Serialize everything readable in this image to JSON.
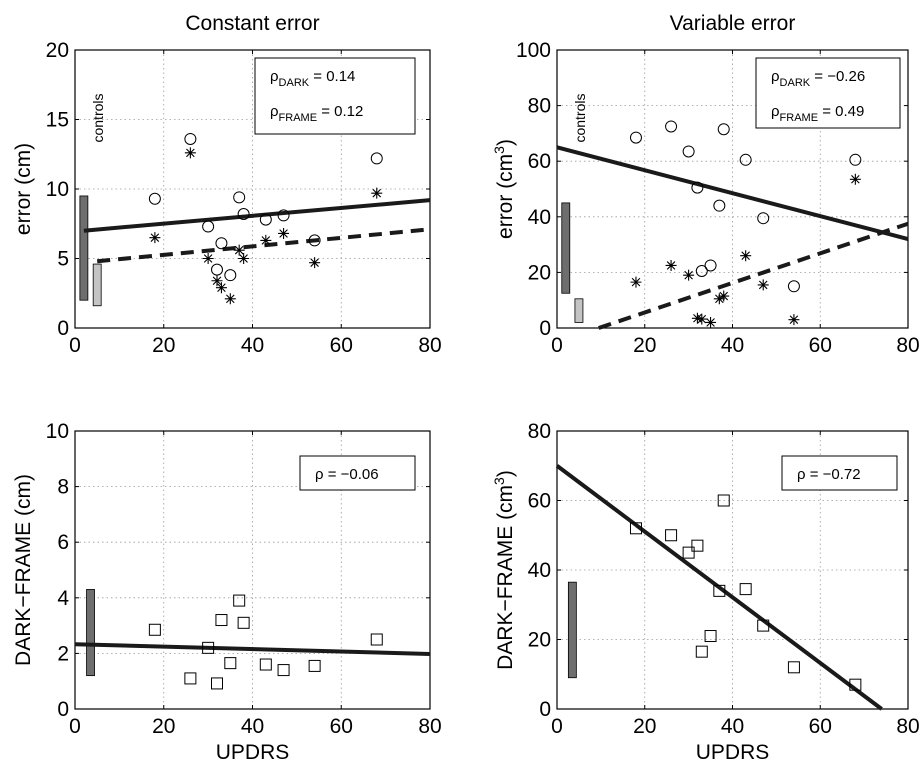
{
  "chart_data": [
    {
      "type": "scatter",
      "title": "Constant error",
      "xlabel": "",
      "ylabel": "error (cm)",
      "ylabel_sup": "",
      "xlim": [
        0,
        80
      ],
      "ylim": [
        0,
        20
      ],
      "xticks": [
        0,
        20,
        40,
        60,
        80
      ],
      "yticks": [
        0,
        5,
        10,
        15,
        20
      ],
      "grid": true,
      "annotation_text": "controls",
      "control_bars": [
        {
          "name": "controls DARK",
          "x": 2,
          "range": [
            2.0,
            9.5
          ],
          "color": "#6e6e6e"
        },
        {
          "name": "controls FRAME",
          "x": 5,
          "range": [
            1.6,
            4.6
          ],
          "color": "#c4c4c4"
        }
      ],
      "legend": [
        {
          "symbol": "ρ",
          "sub": "DARK",
          "value": "= 0.14"
        },
        {
          "symbol": "ρ",
          "sub": "FRAME",
          "value": "= 0.12"
        }
      ],
      "series": [
        {
          "marker": "circle",
          "x": [
            18,
            26,
            30,
            32,
            33,
            35,
            37,
            38,
            43,
            47,
            54,
            68
          ],
          "y": [
            9.3,
            13.6,
            7.3,
            4.2,
            6.1,
            3.8,
            9.4,
            8.2,
            7.8,
            8.1,
            6.3,
            12.2
          ]
        },
        {
          "marker": "star",
          "x": [
            18,
            26,
            30,
            32,
            33,
            35,
            37,
            38,
            43,
            47,
            54,
            68
          ],
          "y": [
            6.5,
            12.6,
            5.0,
            3.4,
            2.9,
            2.1,
            5.6,
            5.0,
            6.3,
            6.8,
            4.7,
            9.7
          ]
        }
      ],
      "fit_lines": [
        {
          "style": "solid",
          "x": [
            2,
            80
          ],
          "y": [
            7.0,
            9.2
          ]
        },
        {
          "style": "dashed",
          "x": [
            5,
            80
          ],
          "y": [
            4.8,
            7.1
          ]
        }
      ]
    },
    {
      "type": "scatter",
      "title": "Variable error",
      "xlabel": "",
      "ylabel": "error (cm",
      "ylabel_sup": "3",
      "ylabel_end": ")",
      "xlim": [
        0,
        80
      ],
      "ylim": [
        0,
        100
      ],
      "xticks": [
        0,
        20,
        40,
        60,
        80
      ],
      "yticks": [
        0,
        20,
        40,
        60,
        80,
        100
      ],
      "grid": true,
      "annotation_text": "controls",
      "control_bars": [
        {
          "name": "controls DARK",
          "x": 2,
          "range": [
            12.5,
            45.0
          ],
          "color": "#6e6e6e"
        },
        {
          "name": "controls FRAME",
          "x": 5,
          "range": [
            2.0,
            10.5
          ],
          "color": "#c4c4c4"
        }
      ],
      "legend": [
        {
          "symbol": "ρ",
          "sub": "DARK",
          "value": "= −0.26"
        },
        {
          "symbol": "ρ",
          "sub": "FRAME",
          "value": "= 0.49"
        }
      ],
      "series": [
        {
          "marker": "circle",
          "x": [
            18,
            26,
            30,
            32,
            33,
            35,
            37,
            38,
            43,
            47,
            54,
            68
          ],
          "y": [
            68.5,
            72.5,
            63.5,
            50.5,
            20.5,
            22.5,
            44.0,
            71.5,
            60.5,
            39.5,
            15.0,
            60.5
          ]
        },
        {
          "marker": "star",
          "x": [
            18,
            26,
            30,
            32,
            33,
            35,
            37,
            38,
            43,
            47,
            54,
            68
          ],
          "y": [
            16.5,
            22.5,
            19.0,
            3.5,
            3.2,
            2.0,
            10.5,
            11.5,
            26.0,
            15.5,
            3.0,
            53.5
          ]
        }
      ],
      "fit_lines": [
        {
          "style": "solid",
          "x": [
            0,
            80
          ],
          "y": [
            65,
            32
          ]
        },
        {
          "style": "dashed",
          "x": [
            9.5,
            80
          ],
          "y": [
            0,
            37.5
          ]
        }
      ]
    },
    {
      "type": "scatter",
      "title": "",
      "xlabel": "UPDRS",
      "ylabel": "DARK−FRAME (cm)",
      "ylabel_sup": "",
      "xlim": [
        0,
        80
      ],
      "ylim": [
        0,
        10
      ],
      "xticks": [
        0,
        20,
        40,
        60,
        80
      ],
      "yticks": [
        0,
        2,
        4,
        6,
        8,
        10
      ],
      "grid": true,
      "annotation_text": "",
      "control_bars": [
        {
          "name": "controls",
          "x": 3.5,
          "range": [
            1.2,
            4.3
          ],
          "color": "#6e6e6e"
        }
      ],
      "legend": [
        {
          "symbol": "ρ",
          "sub": "",
          "value": "= −0.06"
        }
      ],
      "series": [
        {
          "marker": "square",
          "x": [
            18,
            26,
            30,
            32,
            33,
            35,
            37,
            38,
            43,
            47,
            54,
            68
          ],
          "y": [
            2.85,
            1.1,
            2.2,
            0.92,
            3.2,
            1.65,
            3.9,
            3.1,
            1.6,
            1.4,
            1.55,
            2.5
          ]
        }
      ],
      "fit_lines": [
        {
          "style": "solid",
          "x": [
            0,
            80
          ],
          "y": [
            2.33,
            1.98
          ]
        }
      ]
    },
    {
      "type": "scatter",
      "title": "",
      "xlabel": "UPDRS",
      "ylabel": "DARK−FRAME (cm",
      "ylabel_sup": "3",
      "ylabel_end": ")",
      "xlim": [
        0,
        80
      ],
      "ylim": [
        0,
        80
      ],
      "xticks": [
        0,
        20,
        40,
        60,
        80
      ],
      "yticks": [
        0,
        20,
        40,
        60,
        80
      ],
      "grid": true,
      "annotation_text": "",
      "control_bars": [
        {
          "name": "controls",
          "x": 3.5,
          "range": [
            9,
            36.5
          ],
          "color": "#6e6e6e"
        }
      ],
      "legend": [
        {
          "symbol": "ρ",
          "sub": "",
          "value": "= −0.72"
        }
      ],
      "series": [
        {
          "marker": "square",
          "x": [
            18,
            26,
            30,
            32,
            33,
            35,
            37,
            38,
            43,
            47,
            54,
            68
          ],
          "y": [
            52,
            50,
            45,
            47,
            16.5,
            21,
            34,
            60,
            34.5,
            24,
            12,
            7
          ]
        }
      ],
      "fit_lines": [
        {
          "style": "solid",
          "x": [
            0,
            74
          ],
          "y": [
            70,
            0
          ]
        }
      ]
    }
  ]
}
